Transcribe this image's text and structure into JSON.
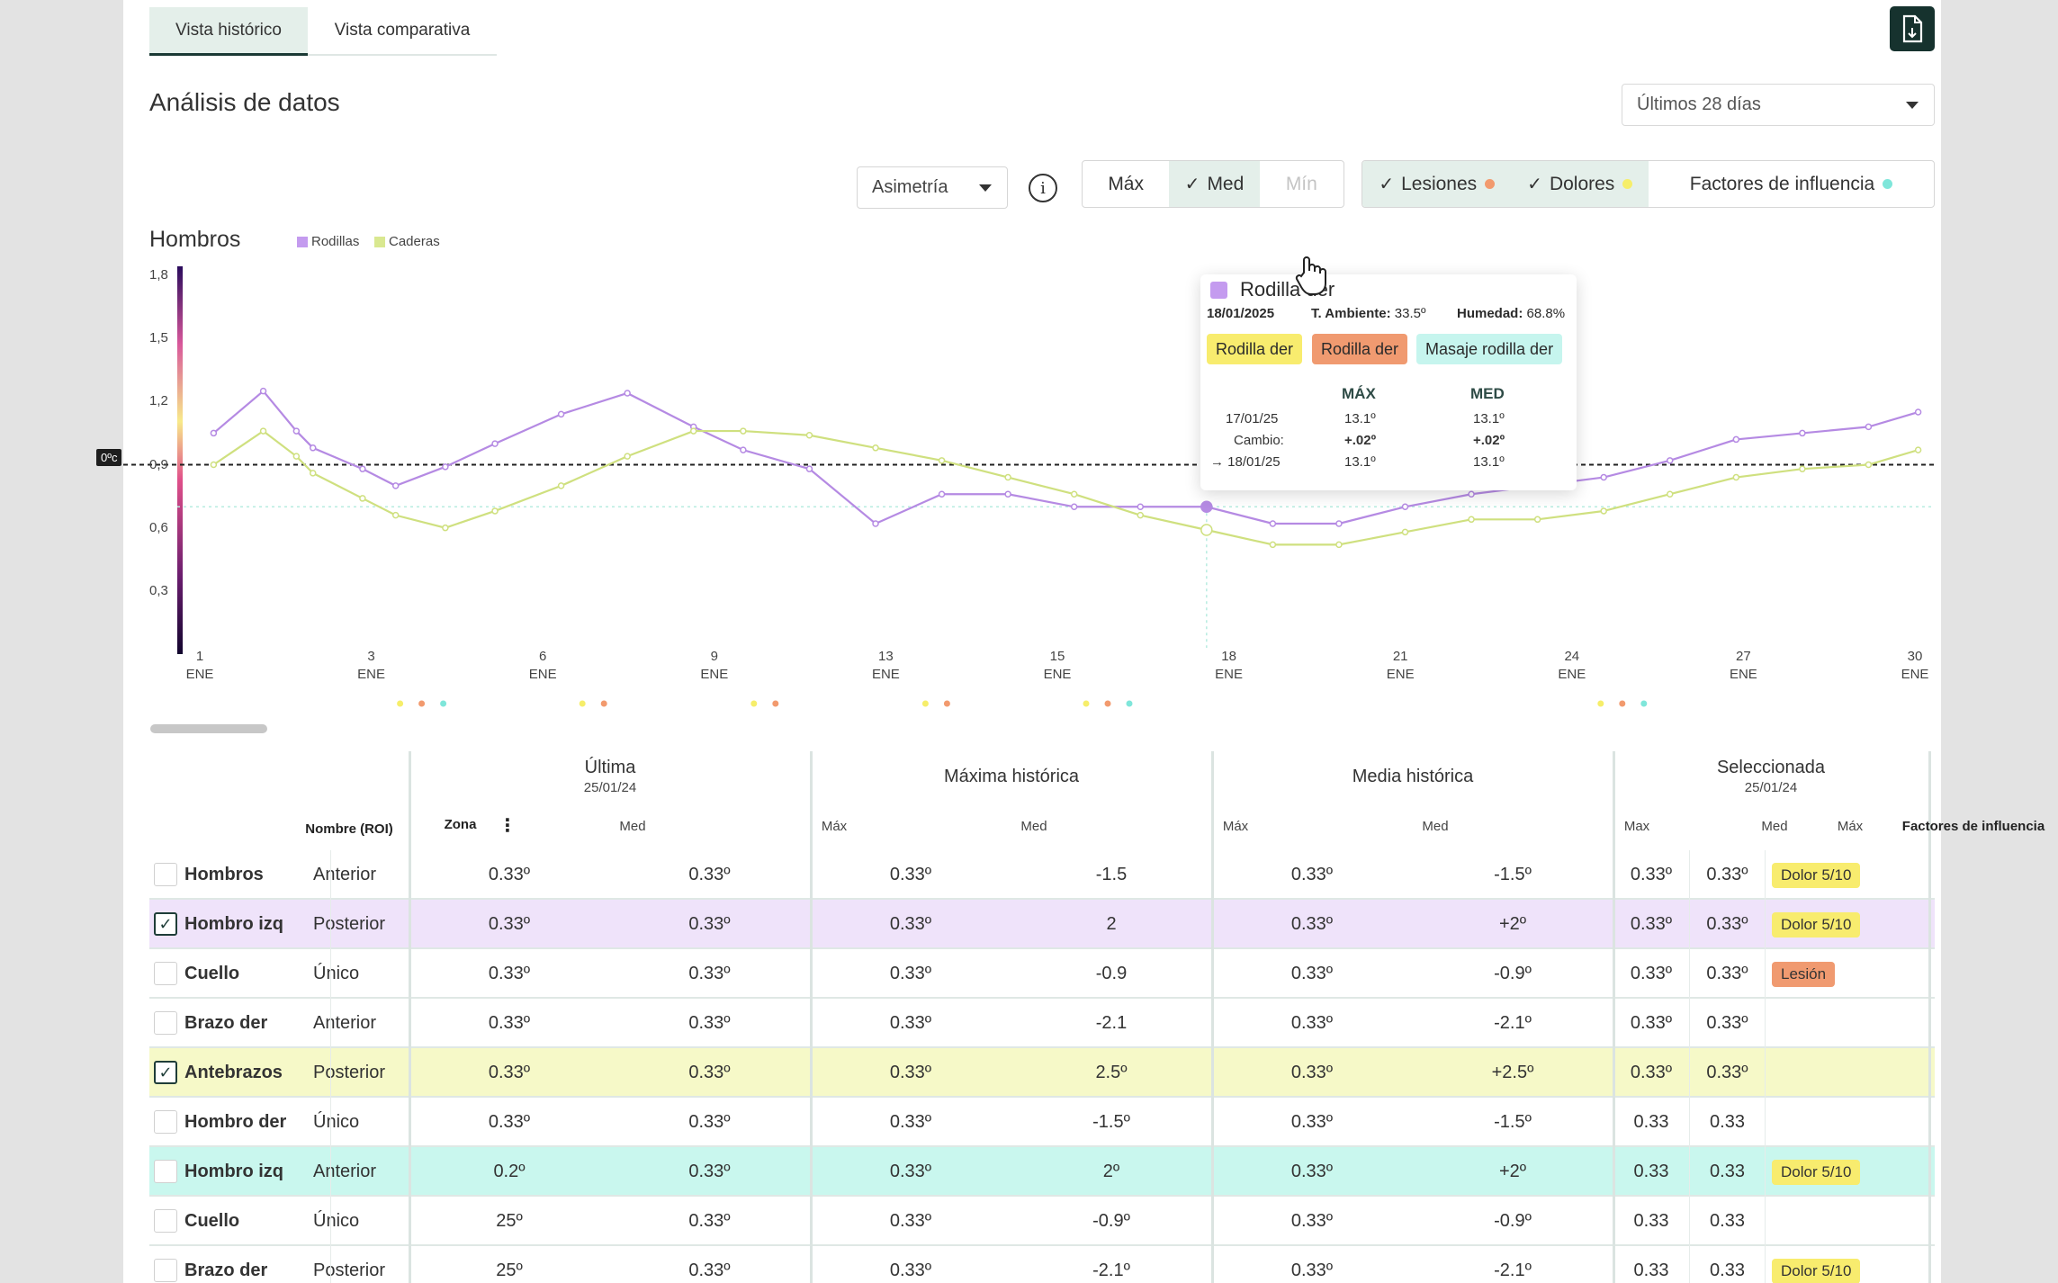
{
  "tabs": {
    "historic": "Vista histórico",
    "comparative": "Vista comparativa"
  },
  "header": {
    "title": "Análisis de datos",
    "date_range": "Últimos 28 días"
  },
  "controls": {
    "metric_select": "Asimetría",
    "stats": {
      "max": "Máx",
      "med": "Med",
      "min": "Mín"
    },
    "filters": {
      "injuries": "Lesiones",
      "pains": "Dolores",
      "factors": "Factores de influencia"
    },
    "colors": {
      "injuries": "#f29a6e",
      "pains": "#f6ee6a",
      "factors": "#7fe6da"
    }
  },
  "chart": {
    "title": "Hombros",
    "legend": [
      {
        "label": "Rodillas",
        "color": "#c49bef"
      },
      {
        "label": "Caderas",
        "color": "#d9e890"
      }
    ],
    "zero_label": "0ºc"
  },
  "chart_data": {
    "type": "line",
    "y_ticks": [
      "1,8",
      "1,5",
      "1,2",
      "0,9",
      "0,6",
      "0,3"
    ],
    "ylim": [
      0,
      1.8
    ],
    "x_ticks": [
      {
        "day": "1",
        "month": "ENE"
      },
      {
        "day": "3",
        "month": "ENE"
      },
      {
        "day": "6",
        "month": "ENE"
      },
      {
        "day": "9",
        "month": "ENE"
      },
      {
        "day": "13",
        "month": "ENE"
      },
      {
        "day": "15",
        "month": "ENE"
      },
      {
        "day": "18",
        "month": "ENE"
      },
      {
        "day": "21",
        "month": "ENE"
      },
      {
        "day": "24",
        "month": "ENE"
      },
      {
        "day": "27",
        "month": "ENE"
      },
      {
        "day": "30",
        "month": "ENE"
      }
    ],
    "reference_y": 0.9,
    "series": [
      {
        "name": "Rodillas",
        "color": "#b58ae3",
        "points": [
          [
            0.5,
            1.05
          ],
          [
            2,
            1.25
          ],
          [
            3,
            1.06
          ],
          [
            3.5,
            0.98
          ],
          [
            5,
            0.88
          ],
          [
            6,
            0.8
          ],
          [
            7.5,
            0.89
          ],
          [
            9,
            1.0
          ],
          [
            11,
            1.14
          ],
          [
            13,
            1.24
          ],
          [
            15,
            1.08
          ],
          [
            16.5,
            0.97
          ],
          [
            18.5,
            0.88
          ],
          [
            20.5,
            0.62
          ],
          [
            22.5,
            0.76
          ],
          [
            24.5,
            0.76
          ],
          [
            26.5,
            0.7
          ],
          [
            28.5,
            0.7
          ],
          [
            30.5,
            0.7
          ],
          [
            32.5,
            0.62
          ],
          [
            34.5,
            0.62
          ],
          [
            36.5,
            0.7
          ],
          [
            38.5,
            0.76
          ],
          [
            40.5,
            0.8
          ],
          [
            42.5,
            0.84
          ],
          [
            44.5,
            0.92
          ],
          [
            46.5,
            1.02
          ],
          [
            48.5,
            1.05
          ],
          [
            50.5,
            1.08
          ],
          [
            52,
            1.15
          ]
        ]
      },
      {
        "name": "Caderas",
        "color": "#cfe07f",
        "points": [
          [
            0.5,
            0.9
          ],
          [
            2,
            1.06
          ],
          [
            3,
            0.94
          ],
          [
            3.5,
            0.86
          ],
          [
            5,
            0.74
          ],
          [
            6,
            0.66
          ],
          [
            7.5,
            0.6
          ],
          [
            9,
            0.68
          ],
          [
            11,
            0.8
          ],
          [
            13,
            0.94
          ],
          [
            15,
            1.06
          ],
          [
            16.5,
            1.06
          ],
          [
            18.5,
            1.04
          ],
          [
            20.5,
            0.98
          ],
          [
            22.5,
            0.92
          ],
          [
            24.5,
            0.84
          ],
          [
            26.5,
            0.76
          ],
          [
            28.5,
            0.66
          ],
          [
            30.5,
            0.59
          ],
          [
            32.5,
            0.52
          ],
          [
            34.5,
            0.52
          ],
          [
            36.5,
            0.58
          ],
          [
            38.5,
            0.64
          ],
          [
            40.5,
            0.64
          ],
          [
            42.5,
            0.68
          ],
          [
            44.5,
            0.76
          ],
          [
            46.5,
            0.84
          ],
          [
            48.5,
            0.88
          ],
          [
            50.5,
            0.9
          ],
          [
            52,
            0.97
          ]
        ]
      }
    ],
    "event_markers": [
      {
        "x": 3,
        "colors": [
          "#f6ee6a",
          "#f29a6e",
          "#7fe6da"
        ]
      },
      {
        "x": 6,
        "colors": [
          "#f6ee6a",
          "#f29a6e"
        ]
      },
      {
        "x": 9,
        "colors": [
          "#f6ee6a",
          "#f29a6e"
        ]
      },
      {
        "x": 13,
        "colors": [
          "#f6ee6a",
          "#f29a6e"
        ]
      },
      {
        "x": 15,
        "colors": [
          "#f6ee6a",
          "#f29a6e",
          "#7fe6da"
        ]
      },
      {
        "x": 24,
        "colors": [
          "#f6ee6a",
          "#f29a6e",
          "#7fe6da"
        ]
      }
    ]
  },
  "tooltip": {
    "title": "Rodilla der",
    "date": "18/01/2025",
    "ambient_label": "T. Ambiente:",
    "ambient_value": "33.5º",
    "humidity_label": "Humedad:",
    "humidity_value": "68.8%",
    "tags": [
      "Rodilla der",
      "Rodilla der",
      "Masaje rodilla der"
    ],
    "col_max": "MÁX",
    "col_med": "MED",
    "rows": [
      {
        "label": "17/01/25",
        "max": "13.1º",
        "med": "13.1º"
      },
      {
        "label": "Cambio:",
        "max": "+.02º",
        "med": "+.02º"
      },
      {
        "label": "→ 18/01/25",
        "max": "13.1º",
        "med": "13.1º"
      }
    ]
  },
  "table": {
    "headers": {
      "name": "Nombre (ROI)",
      "zone": "Zona",
      "last": "Última",
      "last_date": "25/01/24",
      "max_hist": "Máxima histórica",
      "mean_hist": "Media histórica",
      "selected": "Seleccionada",
      "selected_date": "25/01/24",
      "factors": "Factores de influencia",
      "med": "Med",
      "max": "Máx",
      "max_alt": "Max"
    },
    "rows": [
      {
        "name": "Hombros",
        "zone": "Anterior",
        "checked": false,
        "bg": "#ffffff",
        "v": [
          "0.33º",
          "0.33º",
          "0.33º",
          "-1.5",
          "0.33º",
          "-1.5º",
          "0.33º",
          "0.33º"
        ],
        "badge": "Dolor 5/10",
        "badge_color": "#f8ec6e"
      },
      {
        "name": "Hombro izq",
        "zone": "Posterior",
        "checked": true,
        "bg": "#efe3fa",
        "v": [
          "0.33º",
          "0.33º",
          "0.33º",
          "2",
          "0.33º",
          "+2º",
          "0.33º",
          "0.33º"
        ],
        "badge": "Dolor 5/10",
        "badge_color": "#f8ec6e"
      },
      {
        "name": "Cuello",
        "zone": "Único",
        "checked": false,
        "bg": "#ffffff",
        "v": [
          "0.33º",
          "0.33º",
          "0.33º",
          "-0.9",
          "0.33º",
          "-0.9º",
          "0.33º",
          "0.33º"
        ],
        "badge": "Lesión",
        "badge_color": "#f09a70"
      },
      {
        "name": "Brazo der",
        "zone": "Anterior",
        "checked": false,
        "bg": "#ffffff",
        "v": [
          "0.33º",
          "0.33º",
          "0.33º",
          "-2.1",
          "0.33º",
          "-2.1º",
          "0.33º",
          "0.33º"
        ],
        "badge": "",
        "badge_color": ""
      },
      {
        "name": "Antebrazos",
        "zone": "Posterior",
        "checked": true,
        "bg": "#f6f9c8",
        "v": [
          "0.33º",
          "0.33º",
          "0.33º",
          "2.5º",
          "0.33º",
          "+2.5º",
          "0.33º",
          "0.33º"
        ],
        "badge": "",
        "badge_color": ""
      },
      {
        "name": "Hombro der",
        "zone": "Único",
        "checked": false,
        "bg": "#ffffff",
        "v": [
          "0.33º",
          "0.33º",
          "0.33º",
          "-1.5º",
          "0.33º",
          "-1.5º",
          "0.33",
          "0.33"
        ],
        "badge": "",
        "badge_color": ""
      },
      {
        "name": "Hombro izq",
        "zone": "Anterior",
        "checked": false,
        "bg": "#c9f7ee",
        "v": [
          "0.2º",
          "0.33º",
          "0.33º",
          "2º",
          "0.33º",
          "+2º",
          "0.33",
          "0.33"
        ],
        "badge": "Dolor 5/10",
        "badge_color": "#f8ec6e"
      },
      {
        "name": "Cuello",
        "zone": "Único",
        "checked": false,
        "bg": "#ffffff",
        "v": [
          "25º",
          "0.33º",
          "0.33º",
          "-0.9º",
          "0.33º",
          "-0.9º",
          "0.33",
          "0.33"
        ],
        "badge": "",
        "badge_color": ""
      },
      {
        "name": "Brazo der",
        "zone": "Posterior",
        "checked": false,
        "bg": "#ffffff",
        "v": [
          "25º",
          "0.33º",
          "0.33º",
          "-2.1º",
          "0.33º",
          "-2.1º",
          "0.33",
          "0.33"
        ],
        "badge": "Dolor 5/10",
        "badge_color": "#f8ec6e"
      }
    ]
  }
}
